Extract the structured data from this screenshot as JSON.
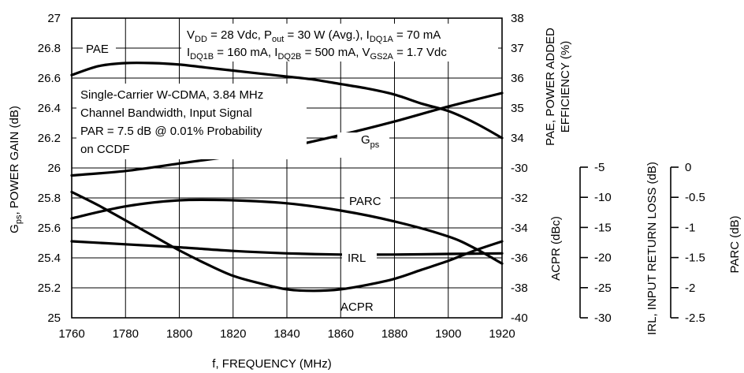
{
  "chart_data": {
    "type": "line",
    "xlabel": "f, FREQUENCY (MHz)",
    "x_ticks": [
      "1760",
      "1780",
      "1800",
      "1820",
      "1840",
      "1860",
      "1880",
      "1900",
      "1920"
    ],
    "xlim": [
      1760,
      1920
    ],
    "left_axis": {
      "label_main": "G",
      "label_sub": "ps",
      "label_rest": ", POWER GAIN (dB)",
      "ylim": [
        25,
        27
      ],
      "ticks": [
        "25",
        "25.2",
        "25.4",
        "25.6",
        "25.8",
        "26",
        "26.2",
        "26.4",
        "26.6",
        "26.8",
        "27"
      ]
    },
    "right_axis_upper": {
      "label_line1": "PAE, POWER ADDED",
      "label_line2": "EFFICIENCY (%)",
      "ylim": [
        28,
        38
      ],
      "ticks": [
        "34",
        "35",
        "36",
        "37",
        "38"
      ]
    },
    "right_axis_lower": {
      "label": "ACPR (dBc)",
      "ylim": [
        -40,
        -20
      ],
      "ticks": [
        "-40",
        "-38",
        "-36",
        "-34",
        "-32",
        "-30"
      ]
    },
    "irl_axis": {
      "label": "IRL, INPUT RETURN LOSS (dB)",
      "ylim": [
        -30,
        -5
      ],
      "ticks": [
        "-30",
        "-25",
        "-20",
        "-15",
        "-10",
        "-5"
      ]
    },
    "parc_axis": {
      "label": "PARC (dB)",
      "ylim": [
        -2.5,
        0
      ],
      "ticks": [
        "-2.5",
        "-2",
        "-1.5",
        "-1",
        "-0.5",
        "0"
      ]
    },
    "conditions": {
      "line1": "V_DD = 28 Vdc, P_out = 30 W (Avg.), I_DQ1A = 70 mA",
      "line2": "I_DQ1B = 160 mA, I_DQ2B = 500 mA, V_GS2A = 1.7 Vdc",
      "p1_a": "V",
      "p1_a_sub": "DD",
      "p1_b": " = 28 Vdc, P",
      "p1_b_sub": "out",
      "p1_c": " = 30 W (Avg.), I",
      "p1_c_sub": "DQ1A",
      "p1_d": " = 70 mA",
      "p2_a": "I",
      "p2_a_sub": "DQ1B",
      "p2_b": " = 160 mA, I",
      "p2_b_sub": "DQ2B",
      "p2_c": " = 500 mA, V",
      "p2_c_sub": "GS2A",
      "p2_d": " = 1.7 Vdc"
    },
    "signal_note": [
      "Single-Carrier W-CDMA, 3.84 MHz",
      "Channel Bandwidth, Input Signal",
      "PAR = 7.5 dB @ 0.01% Probability",
      "on CCDF"
    ],
    "series": [
      {
        "name": "PAE",
        "axis": "pae",
        "unit": "%",
        "x": [
          1760,
          1770,
          1780,
          1790,
          1800,
          1810,
          1820,
          1830,
          1840,
          1850,
          1860,
          1870,
          1880,
          1890,
          1900,
          1910,
          1920
        ],
        "values": [
          36.1,
          36.4,
          36.5,
          36.5,
          36.45,
          36.35,
          36.25,
          36.15,
          36.05,
          35.95,
          35.8,
          35.65,
          35.45,
          35.15,
          34.9,
          34.5,
          34.0
        ]
      },
      {
        "name_main": "G",
        "name_sub": "ps",
        "name": "Gps",
        "axis": "gain",
        "unit": "dB",
        "x": [
          1760,
          1780,
          1800,
          1820,
          1840,
          1860,
          1880,
          1900,
          1920
        ],
        "values": [
          25.95,
          25.98,
          26.03,
          26.08,
          26.14,
          26.22,
          26.31,
          26.41,
          26.5
        ]
      },
      {
        "name": "PARC",
        "axis": "parc",
        "unit": "dB",
        "x": [
          1760,
          1780,
          1800,
          1820,
          1840,
          1860,
          1880,
          1900,
          1910,
          1920
        ],
        "values": [
          -0.85,
          -0.65,
          -0.55,
          -0.55,
          -0.6,
          -0.72,
          -0.9,
          -1.15,
          -1.35,
          -1.6
        ]
      },
      {
        "name": "IRL",
        "axis": "irl",
        "unit": "dB",
        "x": [
          1760,
          1780,
          1800,
          1820,
          1840,
          1860,
          1880,
          1900,
          1920
        ],
        "values": [
          -17.3,
          -17.8,
          -18.3,
          -18.9,
          -19.3,
          -19.5,
          -19.5,
          -19.4,
          -19.3
        ]
      },
      {
        "name": "ACPR",
        "axis": "acpr",
        "unit": "dBc",
        "x": [
          1760,
          1770,
          1780,
          1790,
          1800,
          1810,
          1820,
          1830,
          1840,
          1850,
          1860,
          1870,
          1880,
          1890,
          1900,
          1910,
          1920
        ],
        "values": [
          -31.6,
          -32.5,
          -33.5,
          -34.5,
          -35.5,
          -36.4,
          -37.2,
          -37.7,
          -38.1,
          -38.2,
          -38.1,
          -37.8,
          -37.4,
          -36.8,
          -36.2,
          -35.5,
          -34.9
        ]
      }
    ],
    "grid": true
  }
}
